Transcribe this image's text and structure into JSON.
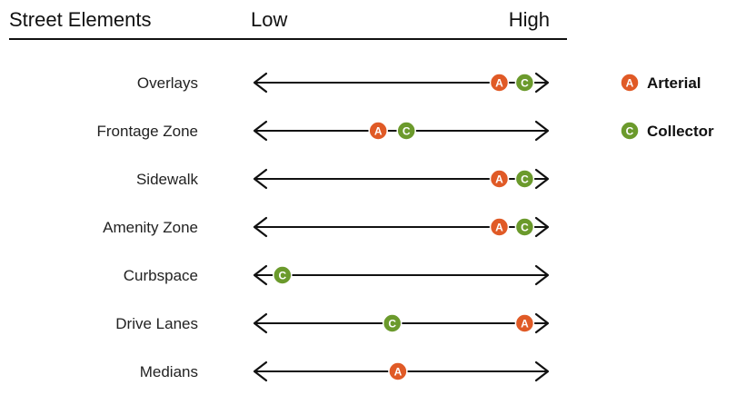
{
  "chart_data": {
    "type": "scatter",
    "header": {
      "title": "Street Elements",
      "low_label": "Low",
      "high_label": "High"
    },
    "xlim": [
      0,
      1
    ],
    "categories": [
      "Overlays",
      "Frontage Zone",
      "Sidewalk",
      "Amenity Zone",
      "Curbspace",
      "Drive Lanes",
      "Medians"
    ],
    "series": [
      {
        "name": "Arterial",
        "marker_letter": "A",
        "color": "#e05a26",
        "values": [
          0.85,
          0.42,
          0.85,
          0.85,
          null,
          0.94,
          0.49
        ]
      },
      {
        "name": "Collector",
        "marker_letter": "C",
        "color": "#6b9a2c",
        "values": [
          0.94,
          0.52,
          0.94,
          0.94,
          0.08,
          0.47,
          null
        ]
      }
    ],
    "legend_position": "right",
    "grid": false
  }
}
